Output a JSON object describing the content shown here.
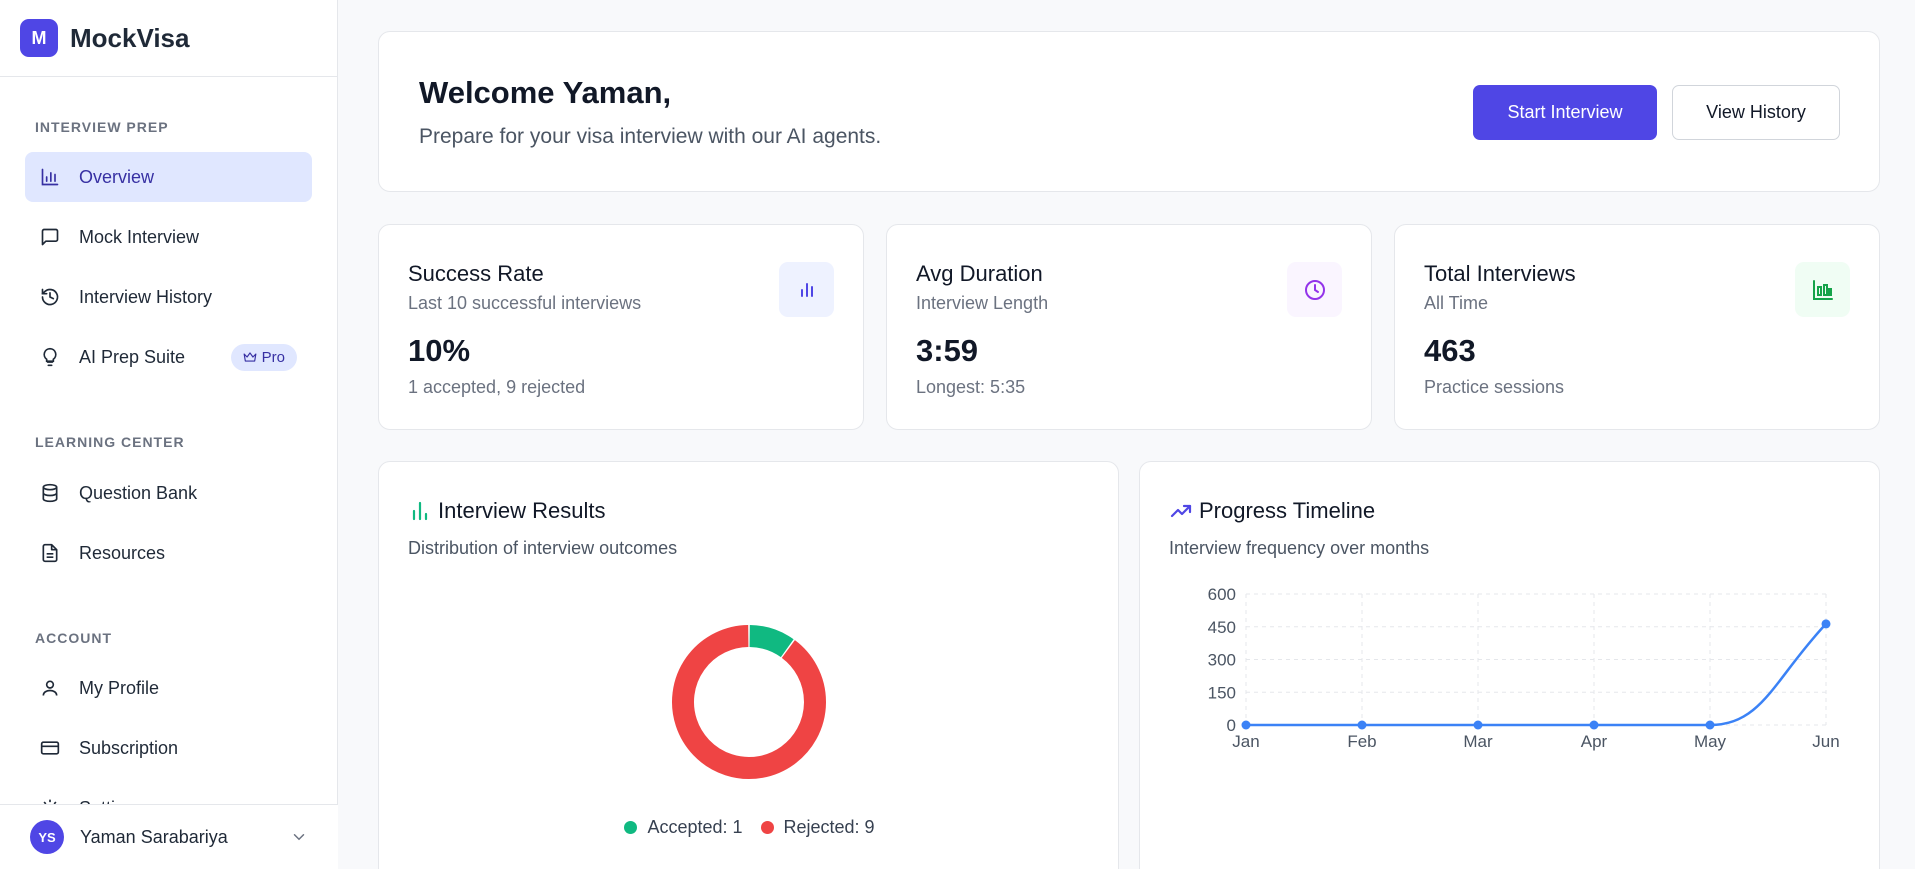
{
  "brand": {
    "logo_letter": "M",
    "name": "MockVisa"
  },
  "sidebar": {
    "sections": [
      {
        "title": "INTERVIEW PREP"
      },
      {
        "title": "LEARNING CENTER"
      },
      {
        "title": "ACCOUNT"
      }
    ],
    "items": [
      {
        "label": "Overview",
        "icon": "bar-chart-icon"
      },
      {
        "label": "Mock Interview",
        "icon": "message-square-icon"
      },
      {
        "label": "Interview History",
        "icon": "history-icon"
      },
      {
        "label": "AI Prep Suite",
        "icon": "lightbulb-icon",
        "badge": "Pro"
      },
      {
        "label": "Question Bank",
        "icon": "database-icon"
      },
      {
        "label": "Resources",
        "icon": "file-text-icon"
      },
      {
        "label": "My Profile",
        "icon": "user-icon"
      },
      {
        "label": "Subscription",
        "icon": "credit-card-icon"
      },
      {
        "label": "Setti",
        "icon": "settings-icon"
      }
    ],
    "active_item": "Overview"
  },
  "user": {
    "initials": "YS",
    "name": "Yaman Sarabariya"
  },
  "welcome": {
    "title": "Welcome Yaman,",
    "subtitle": "Prepare for your visa interview with our AI agents.",
    "start_label": "Start Interview",
    "history_label": "View History"
  },
  "stats": [
    {
      "title": "Success Rate",
      "sub": "Last 10 successful interviews",
      "value": "10%",
      "detail": "1 accepted, 9 rejected",
      "icon": "bar-chart-icon",
      "color": "#4f46e5",
      "bg": "#eef2ff"
    },
    {
      "title": "Avg Duration",
      "sub": "Interview Length",
      "value": "3:59",
      "detail": "Longest: 5:35",
      "icon": "clock-icon",
      "color": "#9333ea",
      "bg": "#faf5ff"
    },
    {
      "title": "Total Interviews",
      "sub": "All Time",
      "value": "463",
      "detail": "Practice sessions",
      "icon": "chart-bars-icon",
      "color": "#16a34a",
      "bg": "#f0fdf4"
    }
  ],
  "results_panel": {
    "title": "Interview Results",
    "subtitle": "Distribution of interview outcomes",
    "legend": [
      {
        "label": "Accepted: 1",
        "color": "#10b981"
      },
      {
        "label": "Rejected: 9",
        "color": "#ef4444"
      }
    ]
  },
  "timeline_panel": {
    "title": "Progress Timeline",
    "subtitle": "Interview frequency over months"
  },
  "chart_data": [
    {
      "type": "pie",
      "categories": [
        "Accepted",
        "Rejected"
      ],
      "values": [
        1,
        9
      ],
      "colors": [
        "#10b981",
        "#ef4444"
      ],
      "donut": true
    },
    {
      "type": "line",
      "x": [
        "Jan",
        "Feb",
        "Mar",
        "Apr",
        "May",
        "Jun"
      ],
      "series": [
        {
          "values": [
            0,
            0,
            0,
            0,
            0,
            463
          ]
        }
      ],
      "ylim": [
        0,
        600
      ],
      "yticks": [
        0,
        150,
        300,
        450,
        600
      ],
      "grid": true,
      "color": "#3b82f6"
    }
  ]
}
